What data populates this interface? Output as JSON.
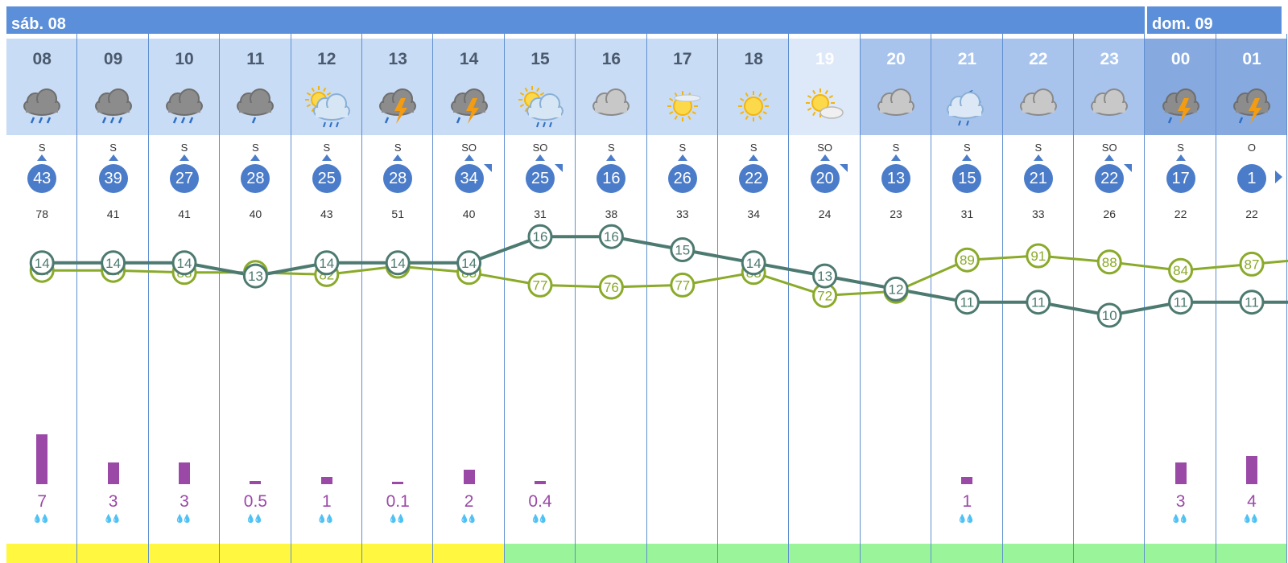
{
  "days": [
    {
      "label": "sáb. 08"
    },
    {
      "label": "dom. 09"
    }
  ],
  "hours": [
    {
      "hour": "08",
      "icon": "rain-cloud-icon",
      "wind_dir": "S",
      "wind": "43",
      "gust": "78",
      "temp": "14",
      "hum": "84",
      "precip": "7",
      "pfrac": 1.0,
      "band": "#fff740",
      "wmark": ""
    },
    {
      "hour": "09",
      "icon": "rain-cloud-icon",
      "wind_dir": "S",
      "wind": "39",
      "gust": "41",
      "temp": "14",
      "hum": "84",
      "precip": "3",
      "pfrac": 0.43,
      "band": "#fff740",
      "wmark": ""
    },
    {
      "hour": "10",
      "icon": "rain-cloud-icon",
      "wind_dir": "S",
      "wind": "27",
      "gust": "41",
      "temp": "14",
      "hum": "83",
      "precip": "3",
      "pfrac": 0.43,
      "band": "#fff740",
      "wmark": ""
    },
    {
      "hour": "11",
      "icon": "light-rain-cloud-icon",
      "wind_dir": "S",
      "wind": "28",
      "gust": "40",
      "temp": "13",
      "hum": "83",
      "precip": "0.5",
      "pfrac": 0.07,
      "band": "#fff740",
      "wmark": ""
    },
    {
      "hour": "12",
      "icon": "sun-cloud-rain-icon",
      "wind_dir": "S",
      "wind": "25",
      "gust": "43",
      "temp": "14",
      "hum": "82",
      "precip": "1",
      "pfrac": 0.14,
      "band": "#fff740",
      "wmark": ""
    },
    {
      "hour": "13",
      "icon": "storm-cloud-icon",
      "wind_dir": "S",
      "wind": "28",
      "gust": "51",
      "temp": "14",
      "hum": "86",
      "precip": "0.1",
      "pfrac": 0.02,
      "band": "#fff740",
      "wmark": ""
    },
    {
      "hour": "14",
      "icon": "storm-cloud-icon",
      "wind_dir": "SO",
      "wind": "34",
      "gust": "40",
      "temp": "14",
      "hum": "83",
      "precip": "2",
      "pfrac": 0.29,
      "band": "#fff740",
      "wmark": "ne"
    },
    {
      "hour": "15",
      "icon": "sun-cloud-rain-icon",
      "wind_dir": "SO",
      "wind": "25",
      "gust": "31",
      "temp": "16",
      "hum": "77",
      "precip": "0.4",
      "pfrac": 0.06,
      "band": "#9af59a",
      "wmark": "ne"
    },
    {
      "hour": "16",
      "icon": "cloud-icon",
      "wind_dir": "S",
      "wind": "16",
      "gust": "38",
      "temp": "16",
      "hum": "76",
      "precip": "",
      "pfrac": 0,
      "band": "#9af59a",
      "wmark": ""
    },
    {
      "hour": "17",
      "icon": "sun-haze-icon",
      "wind_dir": "S",
      "wind": "26",
      "gust": "33",
      "temp": "15",
      "hum": "77",
      "precip": "",
      "pfrac": 0,
      "band": "#9af59a",
      "wmark": ""
    },
    {
      "hour": "18",
      "icon": "sun-icon",
      "wind_dir": "S",
      "wind": "22",
      "gust": "34",
      "temp": "14",
      "hum": "83",
      "precip": "",
      "pfrac": 0,
      "band": "#9af59a",
      "wmark": ""
    },
    {
      "hour": "19",
      "icon": "sun-cloud-icon",
      "wind_dir": "SO",
      "wind": "20",
      "gust": "24",
      "temp": "13",
      "hum": "72",
      "precip": "",
      "pfrac": 0,
      "band": "#9af59a",
      "wmark": "ne"
    },
    {
      "hour": "20",
      "icon": "cloud-icon",
      "wind_dir": "S",
      "wind": "13",
      "gust": "23",
      "temp": "12",
      "hum": "74",
      "precip": "",
      "pfrac": 0,
      "band": "#9af59a",
      "wmark": ""
    },
    {
      "hour": "21",
      "icon": "moon-cloud-rain-icon",
      "wind_dir": "S",
      "wind": "15",
      "gust": "31",
      "temp": "11",
      "hum": "89",
      "precip": "1",
      "pfrac": 0.14,
      "band": "#9af59a",
      "wmark": ""
    },
    {
      "hour": "22",
      "icon": "cloud-icon",
      "wind_dir": "S",
      "wind": "21",
      "gust": "33",
      "temp": "11",
      "hum": "91",
      "precip": "",
      "pfrac": 0,
      "band": "#9af59a",
      "wmark": ""
    },
    {
      "hour": "23",
      "icon": "cloud-icon",
      "wind_dir": "SO",
      "wind": "22",
      "gust": "26",
      "temp": "10",
      "hum": "88",
      "precip": "",
      "pfrac": 0,
      "band": "#9af59a",
      "wmark": "ne"
    },
    {
      "hour": "00",
      "icon": "storm-cloud-icon",
      "wind_dir": "S",
      "wind": "17",
      "gust": "22",
      "temp": "11",
      "hum": "84",
      "precip": "3",
      "pfrac": 0.43,
      "band": "#9af59a",
      "wmark": ""
    },
    {
      "hour": "01",
      "icon": "storm-cloud-icon",
      "wind_dir": "O",
      "wind": "1",
      "gust": "22",
      "temp": "11",
      "hum": "87",
      "precip": "4",
      "pfrac": 0.57,
      "band": "#9af59a",
      "wmark": "e"
    }
  ],
  "colors": {
    "temp_line": "#4d7a70",
    "hum_line": "#8aaa2a",
    "precip": "#9b49a7",
    "header_day": "#c9dcf5",
    "header_evening": "#a8c4ec",
    "header_night": "#86a9e0"
  }
}
